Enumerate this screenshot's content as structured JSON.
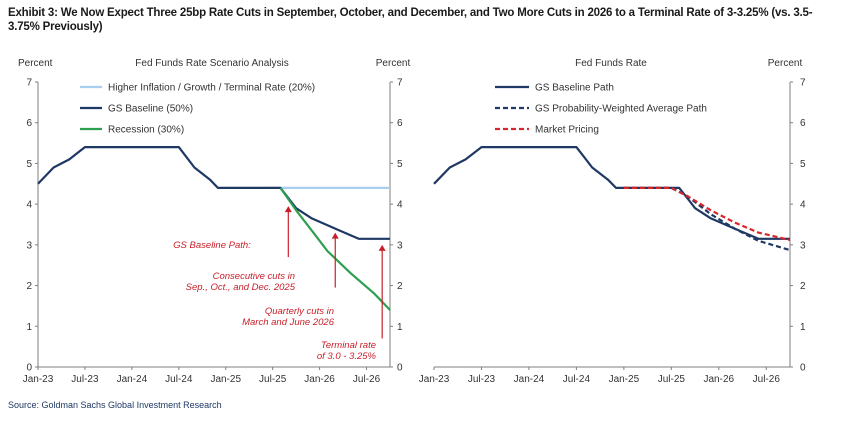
{
  "title": "Exhibit 3: We Now Expect Three 25bp Rate Cuts in September, October, and December, and Two More Cuts in 2026 to a Terminal Rate of 3-3.25% (vs. 3.5-3.75% Previously)",
  "source": "Source: Goldman Sachs Global Investment Research",
  "colors": {
    "high_scenario": "#a9cff0",
    "baseline": "#1f3864",
    "recession": "#2e9e4f",
    "market": "#d9262b",
    "annotation": "#c8202a",
    "axis": "#7f7f7f"
  },
  "chart_data": [
    {
      "type": "line",
      "title": "Fed Funds Rate Scenario Analysis",
      "ylabel_left": "Percent",
      "ylabel_right": "Percent",
      "x_ticks": [
        "Jan-23",
        "Jul-23",
        "Jan-24",
        "Jul-24",
        "Jan-25",
        "Jul-25",
        "Jan-26",
        "Jul-26"
      ],
      "xlim": [
        "2023-01",
        "2026-10"
      ],
      "ylim": [
        0,
        7
      ],
      "y_ticks": [
        0,
        1,
        2,
        3,
        4,
        5,
        6,
        7
      ],
      "legend_position": "top-left",
      "grid": false,
      "series": [
        {
          "name": "Higher Inflation / Growth / Terminal Rate (20%)",
          "color": "#a9cff0",
          "points": [
            [
              "2025-06",
              4.4
            ],
            [
              "2026-10",
              4.4
            ]
          ]
        },
        {
          "name": "GS Baseline (50%)",
          "color": "#1f3864",
          "points": [
            [
              "2023-01",
              4.5
            ],
            [
              "2023-03",
              4.9
            ],
            [
              "2023-05",
              5.1
            ],
            [
              "2023-07",
              5.4
            ],
            [
              "2024-07",
              5.4
            ],
            [
              "2024-09",
              4.9
            ],
            [
              "2024-11",
              4.6
            ],
            [
              "2024-12",
              4.4
            ],
            [
              "2025-08",
              4.4
            ],
            [
              "2025-09",
              4.15
            ],
            [
              "2025-10",
              3.9
            ],
            [
              "2025-12",
              3.65
            ],
            [
              "2026-03",
              3.4
            ],
            [
              "2026-06",
              3.15
            ],
            [
              "2026-10",
              3.15
            ]
          ]
        },
        {
          "name": "Recession (30%)",
          "color": "#2e9e4f",
          "points": [
            [
              "2025-08",
              4.4
            ],
            [
              "2025-10",
              3.85
            ],
            [
              "2025-12",
              3.35
            ],
            [
              "2026-02",
              2.85
            ],
            [
              "2026-05",
              2.3
            ],
            [
              "2026-08",
              1.8
            ],
            [
              "2026-10",
              1.4
            ]
          ]
        }
      ],
      "annotations": [
        {
          "text": "GS Baseline Path:",
          "lines": [
            "GS Baseline Path:"
          ]
        },
        {
          "text": "Consecutive cuts in Sep., Oct., and Dec. 2025",
          "lines": [
            "Consecutive cuts in",
            "Sep., Oct., and Dec. 2025"
          ]
        },
        {
          "text": "Quarterly cuts in March and June 2026",
          "lines": [
            "Quarterly cuts in",
            "March and June 2026"
          ]
        },
        {
          "text": "Terminal rate of 3.0 - 3.25%",
          "lines": [
            "Terminal rate",
            "of 3.0 - 3.25%"
          ]
        }
      ],
      "arrows": [
        {
          "from": [
            "2025-09",
            2.7
          ],
          "to": [
            "2025-09",
            3.95
          ]
        },
        {
          "from": [
            "2026-03",
            1.95
          ],
          "to": [
            "2026-03",
            3.3
          ]
        },
        {
          "from": [
            "2026-09",
            0.7
          ],
          "to": [
            "2026-09",
            3.0
          ]
        }
      ]
    },
    {
      "type": "line",
      "title": "Fed Funds Rate",
      "ylabel_right": "Percent",
      "x_ticks": [
        "Jan-23",
        "Jul-23",
        "Jan-24",
        "Jul-24",
        "Jan-25",
        "Jul-25",
        "Jan-26",
        "Jul-26"
      ],
      "xlim": [
        "2023-01",
        "2026-10"
      ],
      "ylim": [
        0,
        7
      ],
      "y_ticks": [
        0,
        1,
        2,
        3,
        4,
        5,
        6,
        7
      ],
      "legend_position": "top-left",
      "grid": false,
      "series": [
        {
          "name": "GS Baseline Path",
          "color": "#1f3864",
          "style": "solid",
          "points": [
            [
              "2023-01",
              4.5
            ],
            [
              "2023-03",
              4.9
            ],
            [
              "2023-05",
              5.1
            ],
            [
              "2023-07",
              5.4
            ],
            [
              "2024-07",
              5.4
            ],
            [
              "2024-09",
              4.9
            ],
            [
              "2024-11",
              4.6
            ],
            [
              "2024-12",
              4.4
            ],
            [
              "2025-08",
              4.4
            ],
            [
              "2025-09",
              4.15
            ],
            [
              "2025-10",
              3.9
            ],
            [
              "2025-12",
              3.65
            ],
            [
              "2026-03",
              3.4
            ],
            [
              "2026-06",
              3.15
            ],
            [
              "2026-10",
              3.15
            ]
          ]
        },
        {
          "name": "GS Probability-Weighted Average Path",
          "color": "#1f3864",
          "style": "dashed",
          "points": [
            [
              "2025-01",
              4.4
            ],
            [
              "2025-07",
              4.4
            ],
            [
              "2025-09",
              4.2
            ],
            [
              "2025-12",
              3.75
            ],
            [
              "2026-03",
              3.4
            ],
            [
              "2026-06",
              3.1
            ],
            [
              "2026-10",
              2.87
            ]
          ]
        },
        {
          "name": "Market Pricing",
          "color": "#d9262b",
          "style": "dashed",
          "points": [
            [
              "2025-01",
              4.4
            ],
            [
              "2025-07",
              4.4
            ],
            [
              "2025-09",
              4.2
            ],
            [
              "2025-12",
              3.85
            ],
            [
              "2026-03",
              3.55
            ],
            [
              "2026-06",
              3.3
            ],
            [
              "2026-10",
              3.12
            ]
          ]
        }
      ]
    }
  ]
}
